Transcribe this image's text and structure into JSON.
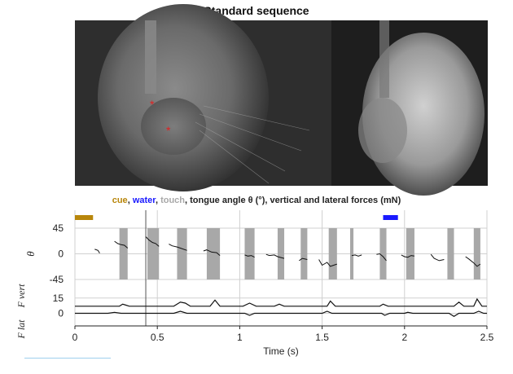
{
  "chart_data": {
    "type": "line",
    "title": "Standard sequence",
    "subtitle": {
      "cue": "cue",
      "sep1": ", ",
      "water": "water",
      "sep2": ", ",
      "touch": "touch",
      "rest": ", tongue angle θ (°), vertical and lateral forces (mN)"
    },
    "xlabel": "Time (s)",
    "xlim": [
      0,
      2.5
    ],
    "x_ticks": [
      "0",
      "0.5",
      "1",
      "1.5",
      "2",
      "2.5"
    ],
    "x_tick_values": [
      0,
      0.5,
      1,
      1.5,
      2,
      2.5
    ],
    "angle_panel": {
      "ylabel": "θ",
      "ylim": [
        -45,
        45
      ],
      "y_ticks": [
        "45",
        "0",
        "-45"
      ],
      "y_tick_values": [
        45,
        0,
        -45
      ]
    },
    "force_panel": {
      "ylabel_vertical": "F vert",
      "ylabel_lateral": "F lat",
      "y_ticks": [
        "15",
        "0"
      ],
      "y_tick_values": [
        15,
        0
      ],
      "ylim": [
        -6,
        22
      ]
    },
    "cue_interval": [
      0.0,
      0.11
    ],
    "water_interval": [
      1.87,
      1.96
    ],
    "marker_line_x": 0.43,
    "touch_intervals": [
      [
        0.27,
        0.32
      ],
      [
        0.44,
        0.51
      ],
      [
        0.62,
        0.68
      ],
      [
        0.8,
        0.88
      ],
      [
        1.03,
        1.09
      ],
      [
        1.23,
        1.27
      ],
      [
        1.37,
        1.41
      ],
      [
        1.54,
        1.59
      ],
      [
        1.67,
        1.69
      ],
      [
        1.85,
        1.89
      ],
      [
        2.01,
        2.06
      ],
      [
        2.26,
        2.3
      ],
      [
        2.42,
        2.46
      ]
    ],
    "angle_series": [
      {
        "x": [
          0.12,
          0.14,
          0.15
        ],
        "y": [
          8,
          6,
          1
        ]
      },
      {
        "x": [
          0.24,
          0.26,
          0.28,
          0.3,
          0.32
        ],
        "y": [
          22,
          18,
          16,
          15,
          10
        ]
      },
      {
        "x": [
          0.43,
          0.45,
          0.47,
          0.49,
          0.51
        ],
        "y": [
          30,
          24,
          20,
          18,
          13
        ]
      },
      {
        "x": [
          0.57,
          0.59,
          0.62,
          0.64,
          0.68
        ],
        "y": [
          17,
          14,
          12,
          10,
          6
        ]
      },
      {
        "x": [
          0.78,
          0.8,
          0.83,
          0.86,
          0.88
        ],
        "y": [
          5,
          7,
          3,
          2,
          -3
        ]
      },
      {
        "x": [
          1.03,
          1.05,
          1.07,
          1.09
        ],
        "y": [
          -2,
          -4,
          -3,
          -6
        ]
      },
      {
        "x": [
          1.16,
          1.18,
          1.21,
          1.23,
          1.27
        ],
        "y": [
          -1,
          -3,
          -2,
          -5,
          -8
        ]
      },
      {
        "x": [
          1.36,
          1.38,
          1.41
        ],
        "y": [
          -12,
          -8,
          -10
        ]
      },
      {
        "x": [
          1.48,
          1.5,
          1.53,
          1.55,
          1.59
        ],
        "y": [
          -10,
          -20,
          -15,
          -22,
          -18
        ]
      },
      {
        "x": [
          1.68,
          1.7,
          1.72,
          1.74
        ],
        "y": [
          -3,
          -2,
          -4,
          -2
        ]
      },
      {
        "x": [
          1.83,
          1.85,
          1.87,
          1.89
        ],
        "y": [
          -1,
          0,
          -5,
          -12
        ]
      },
      {
        "x": [
          1.98,
          2.0,
          2.02,
          2.04,
          2.06
        ],
        "y": [
          -2,
          -5,
          -6,
          -3,
          -4
        ]
      },
      {
        "x": [
          2.16,
          2.18,
          2.21,
          2.24
        ],
        "y": [
          -1,
          -8,
          -12,
          -10
        ]
      },
      {
        "x": [
          2.37,
          2.39,
          2.42,
          2.44,
          2.46
        ],
        "y": [
          -5,
          -9,
          -16,
          -22,
          -18
        ]
      }
    ],
    "force_vertical_series": {
      "x": [
        0,
        0.27,
        0.29,
        0.31,
        0.33,
        0.6,
        0.64,
        0.67,
        0.7,
        0.82,
        0.85,
        0.88,
        1.02,
        1.06,
        1.1,
        1.21,
        1.24,
        1.27,
        1.53,
        1.55,
        1.58,
        1.85,
        1.87,
        1.9,
        2.3,
        2.33,
        2.36,
        2.42,
        2.44,
        2.47,
        2.5
      ],
      "y": [
        7,
        7,
        9,
        8,
        7,
        7,
        11,
        10,
        7,
        7,
        13,
        7,
        7,
        10,
        7,
        7,
        9,
        7,
        7,
        12,
        7,
        7,
        9,
        7,
        7,
        11,
        7,
        7,
        14,
        7,
        7
      ]
    },
    "force_lateral_series": {
      "x": [
        0,
        0.2,
        0.24,
        0.28,
        0.6,
        0.64,
        0.68,
        1.03,
        1.06,
        1.09,
        1.3,
        1.5,
        1.53,
        1.56,
        1.86,
        1.88,
        1.91,
        2.0,
        2.02,
        2.05,
        2.27,
        2.3,
        2.33,
        2.42,
        2.45,
        2.48,
        2.5
      ],
      "y": [
        0,
        0,
        1,
        0,
        0,
        2,
        0,
        0,
        -2,
        0,
        0,
        0,
        2,
        0,
        0,
        -2,
        0,
        0,
        1,
        0,
        0,
        -3,
        0,
        0,
        2,
        0,
        0
      ]
    },
    "colors": {
      "cue": "#b8860b",
      "water": "#1a1aff",
      "touch": "#a8a8a8",
      "trace": "#111111",
      "gridline": "#d0d0d0"
    }
  }
}
